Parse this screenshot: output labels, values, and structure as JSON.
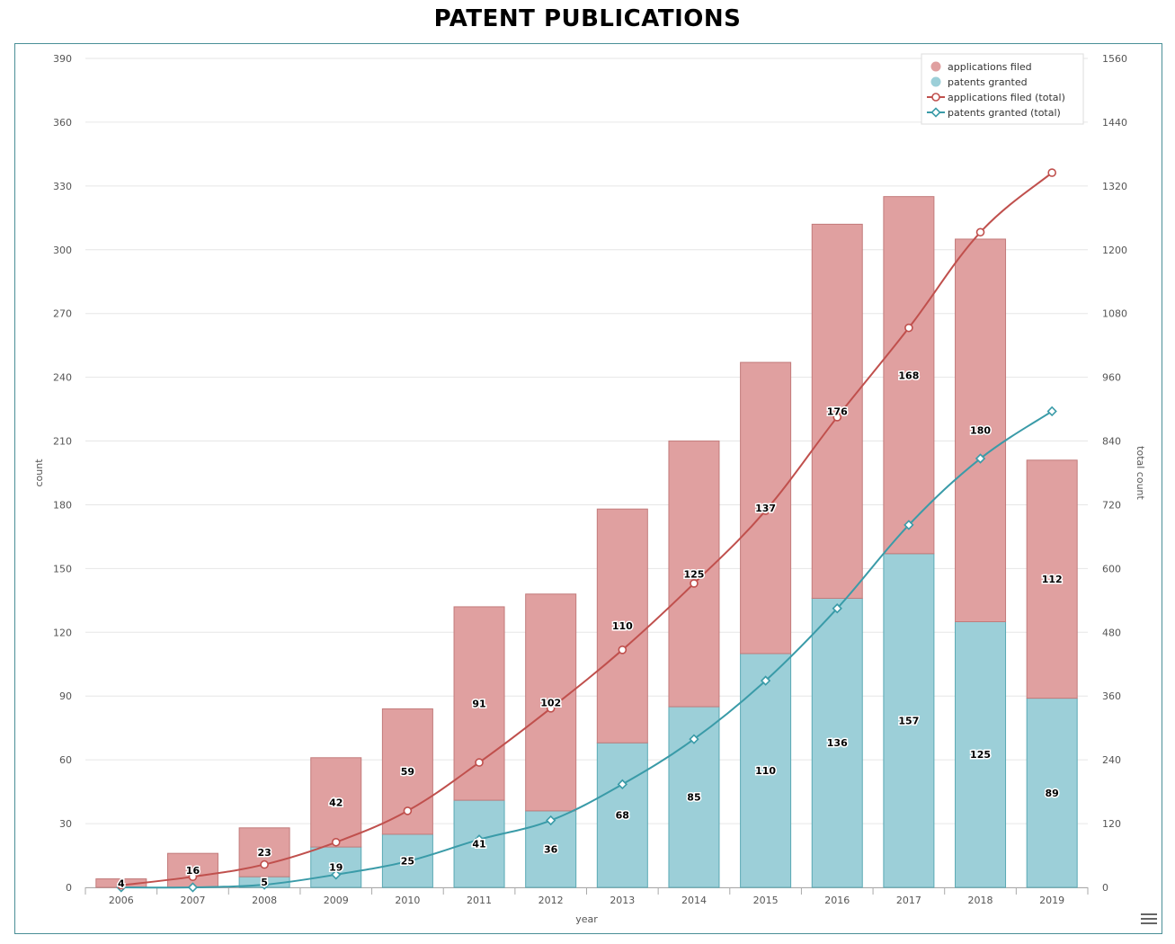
{
  "chart_data": {
    "type": "bar",
    "title": "PATENT PUBLICATIONS",
    "xlabel": "year",
    "ylabel": "count",
    "y2label": "total count",
    "ylim": [
      0,
      390
    ],
    "y2lim": [
      0,
      1560
    ],
    "yticks": [
      0,
      30,
      60,
      90,
      120,
      150,
      180,
      210,
      240,
      270,
      300,
      330,
      360,
      390
    ],
    "y2ticks": [
      0,
      120,
      240,
      360,
      480,
      600,
      720,
      840,
      960,
      1080,
      1200,
      1320,
      1440,
      1560
    ],
    "categories": [
      "2006",
      "2007",
      "2008",
      "2009",
      "2010",
      "2011",
      "2012",
      "2013",
      "2014",
      "2015",
      "2016",
      "2017",
      "2018",
      "2019"
    ],
    "grid": true,
    "legend_position": "top-right",
    "series": [
      {
        "name": "applications filed",
        "kind": "bar",
        "color": "#e0a0a0",
        "values": [
          4,
          16,
          23,
          42,
          59,
          91,
          102,
          110,
          125,
          137,
          176,
          168,
          180,
          112
        ]
      },
      {
        "name": "patents granted",
        "kind": "bar",
        "color": "#9ccfd8",
        "values": [
          0,
          0,
          5,
          19,
          25,
          41,
          36,
          68,
          85,
          110,
          136,
          157,
          125,
          89
        ]
      },
      {
        "name": "applications filed (total)",
        "kind": "line",
        "color": "#c0504d",
        "marker": "circle",
        "values": [
          4,
          20,
          43,
          85,
          144,
          235,
          337,
          447,
          572,
          709,
          885,
          1053,
          1233,
          1345
        ]
      },
      {
        "name": "patents granted (total)",
        "kind": "line",
        "color": "#3a9ba8",
        "marker": "diamond",
        "values": [
          0,
          0,
          5,
          24,
          49,
          90,
          126,
          194,
          279,
          389,
          525,
          682,
          807,
          896
        ]
      }
    ]
  }
}
